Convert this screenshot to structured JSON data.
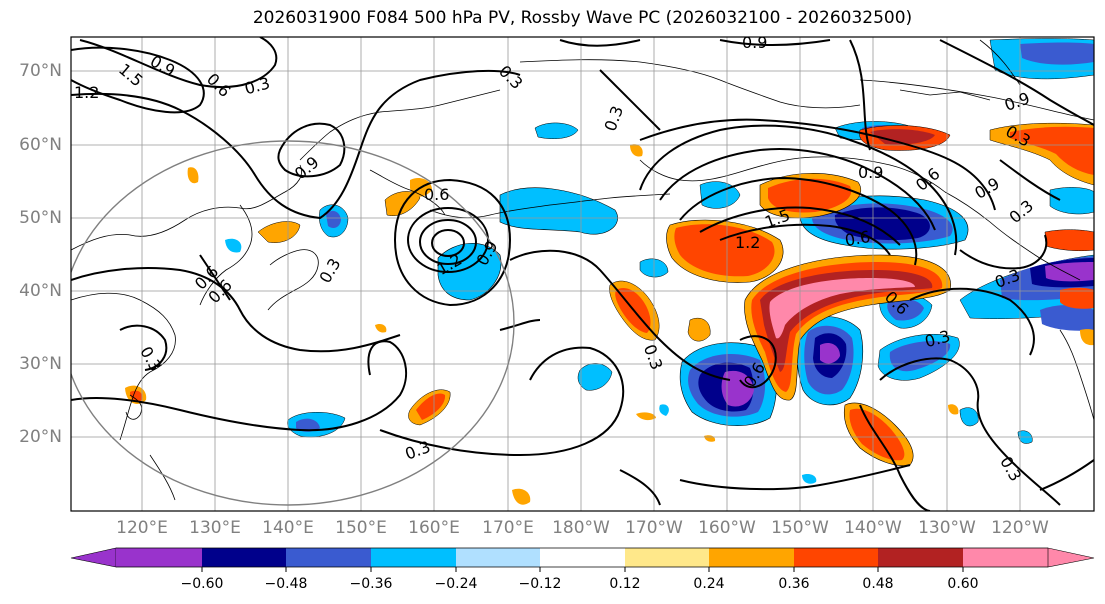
{
  "title": "2026031900 F084 500 hPa PV, Rossby Wave PC (2026032100 - 2026032500)",
  "lat_labels": [
    "70°N",
    "60°N",
    "50°N",
    "40°N",
    "30°N",
    "20°N"
  ],
  "lon_labels": [
    "120°E",
    "130°E",
    "140°E",
    "150°E",
    "160°E",
    "170°E",
    "180°W",
    "170°W",
    "160°W",
    "150°W",
    "140°W",
    "130°W",
    "120°W"
  ],
  "colorbar": {
    "colors": [
      "#9933cc",
      "#00008b",
      "#3a5bd0",
      "#00bfff",
      "#b0e0ff",
      "#ffffff",
      "#ffe88a",
      "#ffa500",
      "#ff4500",
      "#b22222",
      "#ff88aa"
    ],
    "tick_labels": [
      "−0.60",
      "−0.48",
      "−0.36",
      "−0.24",
      "−0.12",
      "0.12",
      "0.24",
      "0.36",
      "0.48",
      "0.60"
    ]
  },
  "contour_labels": [
    "1.5",
    "0.9",
    "0.6",
    "0.3",
    "1.2",
    "0.3",
    "0.9",
    "0.6",
    "0.9",
    "0.6",
    "0.6",
    "0.3",
    "1.2",
    "0.9",
    "0.3",
    "0.3",
    "0.3",
    "0.9",
    "0.3",
    "0.9",
    "1.5",
    "1.2",
    "0.6",
    "0.9",
    "0.6",
    "0.3",
    "0.6",
    "0.3",
    "0.3",
    "0.6",
    "0.3",
    "0.3"
  ]
}
